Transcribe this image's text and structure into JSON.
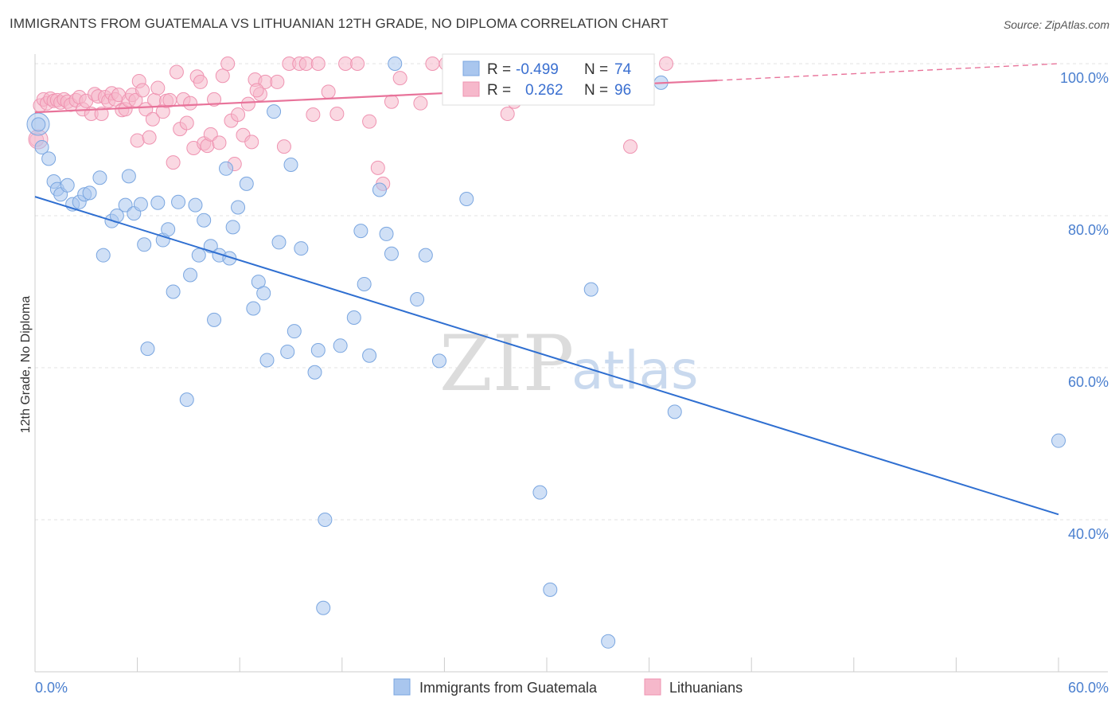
{
  "header": {
    "title": "IMMIGRANTS FROM GUATEMALA VS LITHUANIAN 12TH GRADE, NO DIPLOMA CORRELATION CHART",
    "source": "Source: ZipAtlas.com"
  },
  "watermark": {
    "zip": "ZIP",
    "atlas": "atlas"
  },
  "legend": {
    "rows": [
      {
        "r_label": "R =",
        "r_value": "-0.499",
        "n_label": "N =",
        "n_value": "74"
      },
      {
        "r_label": "R =",
        "r_value": "0.262",
        "n_label": "N =",
        "n_value": "96"
      }
    ]
  },
  "bottom_legend": {
    "a": "Immigrants from Guatemala",
    "b": "Lithuanians"
  },
  "colors": {
    "blue_fill": "#a9c6ee",
    "blue_stroke": "#7aa6e0",
    "blue_line": "#2f6fd1",
    "pink_fill": "#f6b8cb",
    "pink_stroke": "#ef93b1",
    "pink_line": "#e8739a",
    "tick_text": "#4a7fcf",
    "grid": "#e3e3e3"
  },
  "chart_data": {
    "type": "scatter",
    "title": "IMMIGRANTS FROM GUATEMALA VS LITHUANIAN 12TH GRADE, NO DIPLOMA CORRELATION CHART",
    "xlabel": "",
    "ylabel": "12th Grade, No Diploma",
    "xlim": [
      0,
      60
    ],
    "ylim": [
      20,
      102
    ],
    "x_tick_labels": [
      "0.0%",
      "60.0%"
    ],
    "y_ticks": [
      40,
      60,
      80,
      100
    ],
    "y_tick_labels": [
      "40.0%",
      "60.0%",
      "80.0%",
      "100.0%"
    ],
    "grid": true,
    "legend_position": "top-center",
    "series": [
      {
        "name": "Immigrants from Guatemala",
        "color": "#a9c6ee",
        "trend": {
          "x": [
            0,
            60
          ],
          "y": [
            82.5,
            40.7
          ]
        },
        "points": [
          [
            0.2,
            92
          ],
          [
            0.4,
            89
          ],
          [
            0.8,
            87.5
          ],
          [
            1.1,
            84.5
          ],
          [
            1.3,
            83.5
          ],
          [
            1.5,
            82.8
          ],
          [
            1.9,
            84
          ],
          [
            2.2,
            81.5
          ],
          [
            2.6,
            81.8
          ],
          [
            2.9,
            82.8
          ],
          [
            3.2,
            83
          ],
          [
            3.8,
            85
          ],
          [
            4.0,
            74.8
          ],
          [
            4.5,
            79.3
          ],
          [
            4.8,
            80
          ],
          [
            5.3,
            81.4
          ],
          [
            5.5,
            85.2
          ],
          [
            5.8,
            80.3
          ],
          [
            6.2,
            81.5
          ],
          [
            6.4,
            76.2
          ],
          [
            6.6,
            62.5
          ],
          [
            7.2,
            81.7
          ],
          [
            7.5,
            76.8
          ],
          [
            7.8,
            78.2
          ],
          [
            8.1,
            70
          ],
          [
            8.4,
            81.8
          ],
          [
            8.9,
            55.8
          ],
          [
            9.1,
            72.2
          ],
          [
            9.4,
            81.4
          ],
          [
            9.6,
            74.8
          ],
          [
            9.9,
            79.4
          ],
          [
            10.3,
            76
          ],
          [
            10.5,
            66.3
          ],
          [
            10.8,
            74.8
          ],
          [
            11.2,
            86.2
          ],
          [
            11.4,
            74.4
          ],
          [
            11.6,
            78.5
          ],
          [
            11.9,
            81.1
          ],
          [
            12.4,
            84.2
          ],
          [
            12.8,
            67.8
          ],
          [
            13.1,
            71.3
          ],
          [
            13.4,
            69.8
          ],
          [
            13.6,
            61
          ],
          [
            14,
            93.7
          ],
          [
            14.3,
            76.5
          ],
          [
            14.8,
            62.1
          ],
          [
            15,
            86.7
          ],
          [
            15.2,
            64.8
          ],
          [
            15.6,
            75.7
          ],
          [
            16.4,
            59.4
          ],
          [
            16.6,
            62.3
          ],
          [
            17,
            40
          ],
          [
            16.9,
            28.4
          ],
          [
            17.9,
            62.9
          ],
          [
            18.7,
            66.6
          ],
          [
            19.1,
            78
          ],
          [
            19.3,
            71
          ],
          [
            19.6,
            61.6
          ],
          [
            20.2,
            83.4
          ],
          [
            20.6,
            77.6
          ],
          [
            20.9,
            75
          ],
          [
            21.1,
            100
          ],
          [
            22.4,
            69
          ],
          [
            22.9,
            74.8
          ],
          [
            23.7,
            60.9
          ],
          [
            25.3,
            82.2
          ],
          [
            29.6,
            43.6
          ],
          [
            30.2,
            30.8
          ],
          [
            32.6,
            70.3
          ],
          [
            33.6,
            24
          ],
          [
            36.7,
            97.5
          ],
          [
            37.5,
            54.2
          ],
          [
            60,
            50.4
          ],
          [
            25.0,
            100
          ]
        ]
      },
      {
        "name": "Lithuanians",
        "color": "#f6b8cb",
        "trend": {
          "x": [
            0,
            40
          ],
          "y": [
            93.6,
            97.8
          ]
        },
        "trend_dashed": {
          "x": [
            40,
            60
          ],
          "y": [
            97.8,
            100
          ]
        },
        "points": [
          [
            0.1,
            90
          ],
          [
            0.3,
            94.5
          ],
          [
            0.5,
            95.3
          ],
          [
            0.7,
            94.8
          ],
          [
            0.9,
            95.4
          ],
          [
            1.1,
            95.1
          ],
          [
            1.3,
            95.2
          ],
          [
            1.5,
            94.9
          ],
          [
            1.7,
            95.3
          ],
          [
            1.9,
            95
          ],
          [
            2.1,
            94.6
          ],
          [
            2.4,
            95.2
          ],
          [
            2.6,
            95.6
          ],
          [
            2.8,
            94
          ],
          [
            3.0,
            95.1
          ],
          [
            3.3,
            93.4
          ],
          [
            3.5,
            96
          ],
          [
            3.7,
            95.7
          ],
          [
            3.9,
            93.4
          ],
          [
            4.1,
            95.6
          ],
          [
            4.3,
            95.1
          ],
          [
            4.5,
            96.1
          ],
          [
            4.7,
            95.3
          ],
          [
            4.9,
            95.9
          ],
          [
            5.1,
            93.9
          ],
          [
            5.3,
            94
          ],
          [
            5.5,
            95.2
          ],
          [
            5.7,
            95.9
          ],
          [
            5.9,
            95.2
          ],
          [
            6.0,
            89.9
          ],
          [
            6.1,
            97.7
          ],
          [
            6.3,
            96.5
          ],
          [
            6.5,
            94
          ],
          [
            6.7,
            90.3
          ],
          [
            6.9,
            92.7
          ],
          [
            7.0,
            95.2
          ],
          [
            7.2,
            96.8
          ],
          [
            7.5,
            93.7
          ],
          [
            7.7,
            95.1
          ],
          [
            7.9,
            95.2
          ],
          [
            8.1,
            87
          ],
          [
            8.3,
            98.9
          ],
          [
            8.5,
            91.4
          ],
          [
            8.7,
            95.3
          ],
          [
            8.9,
            92.2
          ],
          [
            9.1,
            94.8
          ],
          [
            9.3,
            88.9
          ],
          [
            9.5,
            98.3
          ],
          [
            9.7,
            97.6
          ],
          [
            9.9,
            89.5
          ],
          [
            10.1,
            89.2
          ],
          [
            10.3,
            90.7
          ],
          [
            10.5,
            95.3
          ],
          [
            10.8,
            89.6
          ],
          [
            11.0,
            98.4
          ],
          [
            11.3,
            100
          ],
          [
            11.5,
            92.5
          ],
          [
            11.7,
            86.8
          ],
          [
            11.9,
            93.3
          ],
          [
            12.2,
            90.6
          ],
          [
            12.5,
            94.7
          ],
          [
            12.7,
            89.7
          ],
          [
            12.9,
            97.9
          ],
          [
            13.2,
            96
          ],
          [
            13.5,
            97.6
          ],
          [
            14.2,
            97.6
          ],
          [
            14.6,
            89.1
          ],
          [
            14.9,
            100
          ],
          [
            15.5,
            100
          ],
          [
            15.9,
            100
          ],
          [
            16.3,
            93.3
          ],
          [
            16.6,
            100
          ],
          [
            17.2,
            96.3
          ],
          [
            17.7,
            93.4
          ],
          [
            18.2,
            100
          ],
          [
            18.9,
            100
          ],
          [
            19.6,
            92.4
          ],
          [
            20.4,
            84.2
          ],
          [
            20.9,
            95
          ],
          [
            21.4,
            98.1
          ],
          [
            22.6,
            94.8
          ],
          [
            23.3,
            100
          ],
          [
            24.1,
            100
          ],
          [
            25.0,
            100
          ],
          [
            26.3,
            100
          ],
          [
            27.7,
            93.4
          ],
          [
            28.1,
            95
          ],
          [
            27.4,
            100
          ],
          [
            28.8,
            100
          ],
          [
            30.2,
            100
          ],
          [
            32.0,
            100
          ],
          [
            33.0,
            100
          ],
          [
            34.9,
            89.1
          ],
          [
            37.0,
            100
          ],
          [
            13.0,
            96.5
          ],
          [
            20.1,
            86.3
          ]
        ]
      }
    ]
  }
}
